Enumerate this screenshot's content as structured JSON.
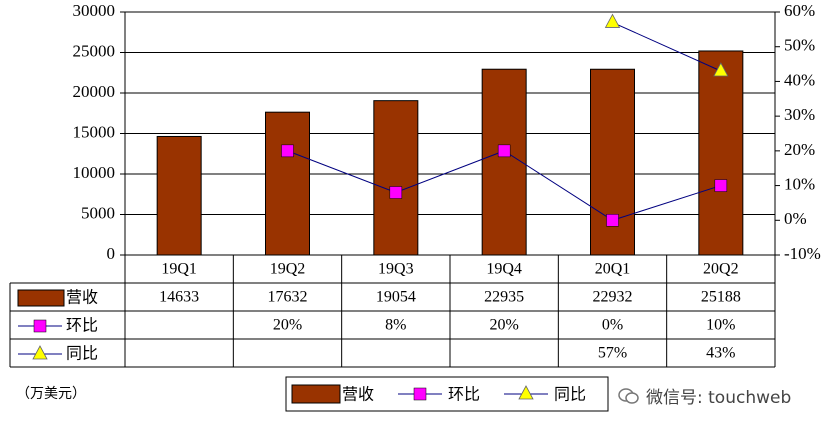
{
  "chart_data": {
    "type": "bar",
    "categories": [
      "19Q1",
      "19Q2",
      "19Q3",
      "19Q4",
      "20Q1",
      "20Q2"
    ],
    "series": [
      {
        "name": "营收",
        "kind": "bar",
        "axis": "left",
        "values": [
          14633,
          17632,
          19054,
          22935,
          22932,
          25188
        ],
        "labels": [
          "14633",
          "17632",
          "19054",
          "22935",
          "22932",
          "25188"
        ],
        "color": "#993300"
      },
      {
        "name": "环比",
        "kind": "line",
        "axis": "right",
        "marker": "square",
        "values": [
          null,
          20,
          8,
          20,
          0,
          10
        ],
        "labels": [
          "",
          "20%",
          "8%",
          "20%",
          "0%",
          "10%"
        ],
        "color": "#ff00ff",
        "line_color": "#000080"
      },
      {
        "name": "同比",
        "kind": "line",
        "axis": "right",
        "marker": "triangle",
        "values": [
          null,
          null,
          null,
          null,
          57,
          43
        ],
        "labels": [
          "",
          "",
          "",
          "",
          "57%",
          "43%"
        ],
        "color": "#ffff00",
        "line_color": "#000080"
      }
    ],
    "y_left": {
      "ylim": [
        0,
        30000
      ],
      "ticks": [
        "0",
        "5000",
        "10000",
        "15000",
        "20000",
        "25000",
        "30000"
      ]
    },
    "y_right": {
      "ylim": [
        -10,
        60
      ],
      "ticks": [
        "-10%",
        "0%",
        "10%",
        "20%",
        "30%",
        "40%",
        "50%",
        "60%"
      ]
    },
    "grid": true,
    "legend": "bottom",
    "data_table": true
  },
  "unit_label": "（万美元）",
  "legend_items": [
    "营收",
    "环比",
    "同比"
  ],
  "watermark": "微信号: touchweb"
}
